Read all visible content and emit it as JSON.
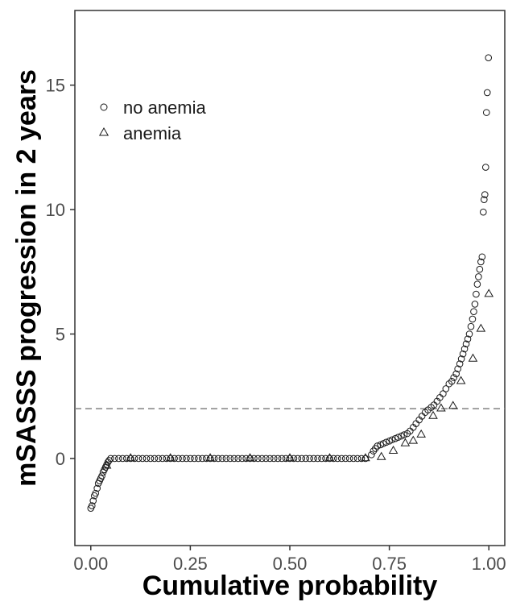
{
  "chart_data": {
    "type": "scatter",
    "title": "",
    "xlabel": "Cumulative probability",
    "ylabel": "mSASSS progression in 2 years",
    "xlim": [
      -0.04,
      1.04
    ],
    "ylim": [
      -3.5,
      18.0
    ],
    "x_ticks": [
      0.0,
      0.25,
      0.5,
      0.75,
      1.0
    ],
    "x_tick_labels": [
      "0.00",
      "0.25",
      "0.50",
      "0.75",
      "1.00"
    ],
    "y_ticks": [
      0,
      5,
      10,
      15
    ],
    "y_tick_labels": [
      "0",
      "5",
      "10",
      "15"
    ],
    "grid": false,
    "legend_position": "top-left",
    "reference_line": {
      "y": 2,
      "style": "dashed",
      "color": "#808080"
    },
    "series": [
      {
        "name": "no anemia",
        "marker": "circle",
        "points": [
          [
            0.0,
            -2.0
          ],
          [
            0.003,
            -1.9
          ],
          [
            0.006,
            -1.7
          ],
          [
            0.009,
            -1.5
          ],
          [
            0.012,
            -1.4
          ],
          [
            0.016,
            -1.2
          ],
          [
            0.019,
            -1.0
          ],
          [
            0.022,
            -0.9
          ],
          [
            0.025,
            -0.8
          ],
          [
            0.028,
            -0.7
          ],
          [
            0.031,
            -0.55
          ],
          [
            0.034,
            -0.45
          ],
          [
            0.037,
            -0.35
          ],
          [
            0.04,
            -0.25
          ],
          [
            0.043,
            -0.15
          ],
          [
            0.046,
            -0.08
          ],
          [
            0.05,
            0.0
          ],
          [
            0.06,
            0.0
          ],
          [
            0.07,
            0.0
          ],
          [
            0.08,
            0.0
          ],
          [
            0.09,
            0.0
          ],
          [
            0.1,
            0.0
          ],
          [
            0.11,
            0.0
          ],
          [
            0.12,
            0.0
          ],
          [
            0.13,
            0.0
          ],
          [
            0.14,
            0.0
          ],
          [
            0.15,
            0.0
          ],
          [
            0.16,
            0.0
          ],
          [
            0.17,
            0.0
          ],
          [
            0.18,
            0.0
          ],
          [
            0.19,
            0.0
          ],
          [
            0.2,
            0.0
          ],
          [
            0.21,
            0.0
          ],
          [
            0.22,
            0.0
          ],
          [
            0.23,
            0.0
          ],
          [
            0.24,
            0.0
          ],
          [
            0.25,
            0.0
          ],
          [
            0.26,
            0.0
          ],
          [
            0.27,
            0.0
          ],
          [
            0.28,
            0.0
          ],
          [
            0.29,
            0.0
          ],
          [
            0.3,
            0.0
          ],
          [
            0.31,
            0.0
          ],
          [
            0.32,
            0.0
          ],
          [
            0.33,
            0.0
          ],
          [
            0.34,
            0.0
          ],
          [
            0.35,
            0.0
          ],
          [
            0.36,
            0.0
          ],
          [
            0.37,
            0.0
          ],
          [
            0.38,
            0.0
          ],
          [
            0.39,
            0.0
          ],
          [
            0.4,
            0.0
          ],
          [
            0.41,
            0.0
          ],
          [
            0.42,
            0.0
          ],
          [
            0.43,
            0.0
          ],
          [
            0.44,
            0.0
          ],
          [
            0.45,
            0.0
          ],
          [
            0.46,
            0.0
          ],
          [
            0.47,
            0.0
          ],
          [
            0.48,
            0.0
          ],
          [
            0.49,
            0.0
          ],
          [
            0.5,
            0.0
          ],
          [
            0.51,
            0.0
          ],
          [
            0.52,
            0.0
          ],
          [
            0.53,
            0.0
          ],
          [
            0.54,
            0.0
          ],
          [
            0.55,
            0.0
          ],
          [
            0.56,
            0.0
          ],
          [
            0.57,
            0.0
          ],
          [
            0.58,
            0.0
          ],
          [
            0.59,
            0.0
          ],
          [
            0.6,
            0.0
          ],
          [
            0.61,
            0.0
          ],
          [
            0.62,
            0.0
          ],
          [
            0.63,
            0.0
          ],
          [
            0.64,
            0.0
          ],
          [
            0.65,
            0.0
          ],
          [
            0.66,
            0.0
          ],
          [
            0.67,
            0.0
          ],
          [
            0.68,
            0.0
          ],
          [
            0.69,
            0.0
          ],
          [
            0.705,
            0.15
          ],
          [
            0.71,
            0.3
          ],
          [
            0.715,
            0.4
          ],
          [
            0.72,
            0.5
          ],
          [
            0.728,
            0.55
          ],
          [
            0.735,
            0.6
          ],
          [
            0.742,
            0.65
          ],
          [
            0.75,
            0.7
          ],
          [
            0.757,
            0.75
          ],
          [
            0.765,
            0.8
          ],
          [
            0.772,
            0.85
          ],
          [
            0.78,
            0.9
          ],
          [
            0.787,
            0.95
          ],
          [
            0.795,
            1.0
          ],
          [
            0.802,
            1.1
          ],
          [
            0.81,
            1.25
          ],
          [
            0.817,
            1.4
          ],
          [
            0.825,
            1.55
          ],
          [
            0.832,
            1.7
          ],
          [
            0.84,
            1.85
          ],
          [
            0.847,
            1.95
          ],
          [
            0.855,
            2.05
          ],
          [
            0.862,
            2.15
          ],
          [
            0.87,
            2.3
          ],
          [
            0.877,
            2.45
          ],
          [
            0.885,
            2.6
          ],
          [
            0.892,
            2.8
          ],
          [
            0.9,
            3.0
          ],
          [
            0.907,
            3.1
          ],
          [
            0.912,
            3.25
          ],
          [
            0.918,
            3.4
          ],
          [
            0.922,
            3.6
          ],
          [
            0.927,
            3.8
          ],
          [
            0.931,
            4.0
          ],
          [
            0.935,
            4.2
          ],
          [
            0.939,
            4.4
          ],
          [
            0.943,
            4.6
          ],
          [
            0.947,
            4.8
          ],
          [
            0.951,
            5.0
          ],
          [
            0.955,
            5.3
          ],
          [
            0.959,
            5.6
          ],
          [
            0.962,
            5.9
          ],
          [
            0.965,
            6.2
          ],
          [
            0.968,
            6.6
          ],
          [
            0.971,
            7.0
          ],
          [
            0.974,
            7.3
          ],
          [
            0.977,
            7.6
          ],
          [
            0.98,
            7.9
          ],
          [
            0.983,
            8.1
          ],
          [
            0.986,
            9.9
          ],
          [
            0.988,
            10.4
          ],
          [
            0.99,
            10.6
          ],
          [
            0.992,
            11.7
          ],
          [
            0.994,
            13.9
          ],
          [
            0.996,
            14.7
          ],
          [
            0.999,
            16.1
          ]
        ]
      },
      {
        "name": "anemia",
        "marker": "triangle",
        "points": [
          [
            0.04,
            -0.3
          ],
          [
            0.1,
            0.0
          ],
          [
            0.2,
            0.0
          ],
          [
            0.3,
            0.0
          ],
          [
            0.4,
            0.0
          ],
          [
            0.5,
            0.0
          ],
          [
            0.6,
            0.0
          ],
          [
            0.69,
            0.0
          ],
          [
            0.73,
            0.05
          ],
          [
            0.76,
            0.3
          ],
          [
            0.79,
            0.6
          ],
          [
            0.81,
            0.7
          ],
          [
            0.83,
            0.95
          ],
          [
            0.86,
            1.7
          ],
          [
            0.88,
            2.0
          ],
          [
            0.91,
            2.1
          ],
          [
            0.93,
            3.1
          ],
          [
            0.96,
            4.0
          ],
          [
            0.98,
            5.2
          ],
          [
            1.0,
            6.6
          ]
        ]
      }
    ]
  }
}
